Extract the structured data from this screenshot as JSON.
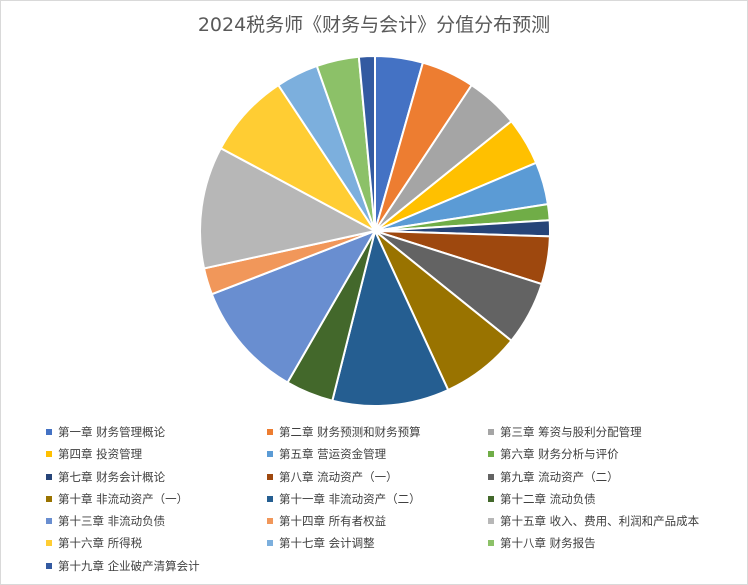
{
  "chart_data": {
    "type": "pie",
    "title": "2024税务师《财务与会计》分值分布预测",
    "legend_position": "bottom",
    "categories": [
      "第一章 财务管理概论",
      "第二章 财务预测和财务预算",
      "第三章 筹资与股利分配管理",
      "第四章 投资管理",
      "第五章 营运资金管理",
      "第六章 财务分析与评价",
      "第七章 财务会计概论",
      "第八章 流动资产（一）",
      "第九章 流动资产（二）",
      "第十章 非流动资产（一）",
      "第十一章 非流动资产（二）",
      "第十二章 流动负债",
      "第十三章 非流动负债",
      "第十四章 所有者权益",
      "第十五章 收入、费用、利润和产品成本",
      "第十六章 所得税",
      "第十七章 会计调整",
      "第十八章 财务报告",
      "第十九章 企业破产清算会计"
    ],
    "values": [
      4.5,
      5,
      5,
      4.5,
      4,
      1.5,
      1.5,
      4.5,
      6,
      7.5,
      11,
      4.5,
      11,
      2.5,
      11.5,
      8,
      4,
      4,
      1.5
    ],
    "colors": [
      "#4472c4",
      "#ed7d31",
      "#a5a5a5",
      "#ffc000",
      "#5b9bd5",
      "#70ad47",
      "#264478",
      "#9e480e",
      "#636363",
      "#997300",
      "#255e91",
      "#43682b",
      "#698ed0",
      "#f1975a",
      "#b7b7b7",
      "#ffcd33",
      "#7cafdd",
      "#8cc168",
      "#335aa1"
    ]
  }
}
